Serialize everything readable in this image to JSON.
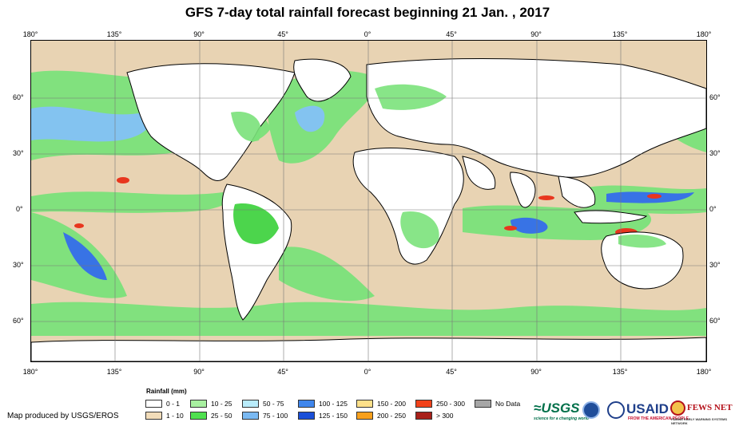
{
  "title": "GFS 7-day total rainfall forecast beginning 21 Jan. , 2017",
  "map": {
    "lon_labels": [
      "180°",
      "135°",
      "90°",
      "45°",
      "0°",
      "45°",
      "90°",
      "135°",
      "180°"
    ],
    "lat_labels": [
      "60°",
      "30°",
      "0°",
      "30°",
      "60°"
    ],
    "colors": {
      "ocean_dry": "#e8d3b3",
      "land_dry": "#ffffff",
      "rain_light": "#7be27b",
      "rain_mid": "#38d038",
      "rain_high": "#7ec3f4",
      "rain_heavy": "#2f6ee8",
      "rain_extreme": "#e8361e",
      "graticule": "#777777",
      "coast": "#000000"
    }
  },
  "legend": {
    "title": "Rainfall (mm)",
    "items": [
      {
        "label": "0 - 1",
        "color": "#ffffff"
      },
      {
        "label": "1 - 10",
        "color": "#f2dcb9"
      },
      {
        "label": "10 - 25",
        "color": "#a8f0a0"
      },
      {
        "label": "25 - 50",
        "color": "#4fe04f"
      },
      {
        "label": "50 - 75",
        "color": "#b9ecfb"
      },
      {
        "label": "75 - 100",
        "color": "#7ab9f2"
      },
      {
        "label": "100 - 125",
        "color": "#3f86ec"
      },
      {
        "label": "125 - 150",
        "color": "#1a4fd8"
      },
      {
        "label": "150 - 200",
        "color": "#fde08a"
      },
      {
        "label": "200 - 250",
        "color": "#f8a01c"
      },
      {
        "label": "250 - 300",
        "color": "#f2421a"
      },
      {
        "label": "> 300",
        "color": "#a8201a"
      },
      {
        "label": "No Data",
        "color": "#a6a6a6"
      }
    ]
  },
  "credit": "Map produced by USGS/EROS",
  "logos": {
    "usgs": "≈USGS",
    "usgs_tagline": "science for a changing world",
    "usaid": "USAID",
    "usaid_tagline": "FROM THE AMERICAN PEOPLE",
    "fews": "FEWS NET",
    "fews_tagline": "FAMINE EARLY WARNING SYSTEMS NETWORK"
  }
}
